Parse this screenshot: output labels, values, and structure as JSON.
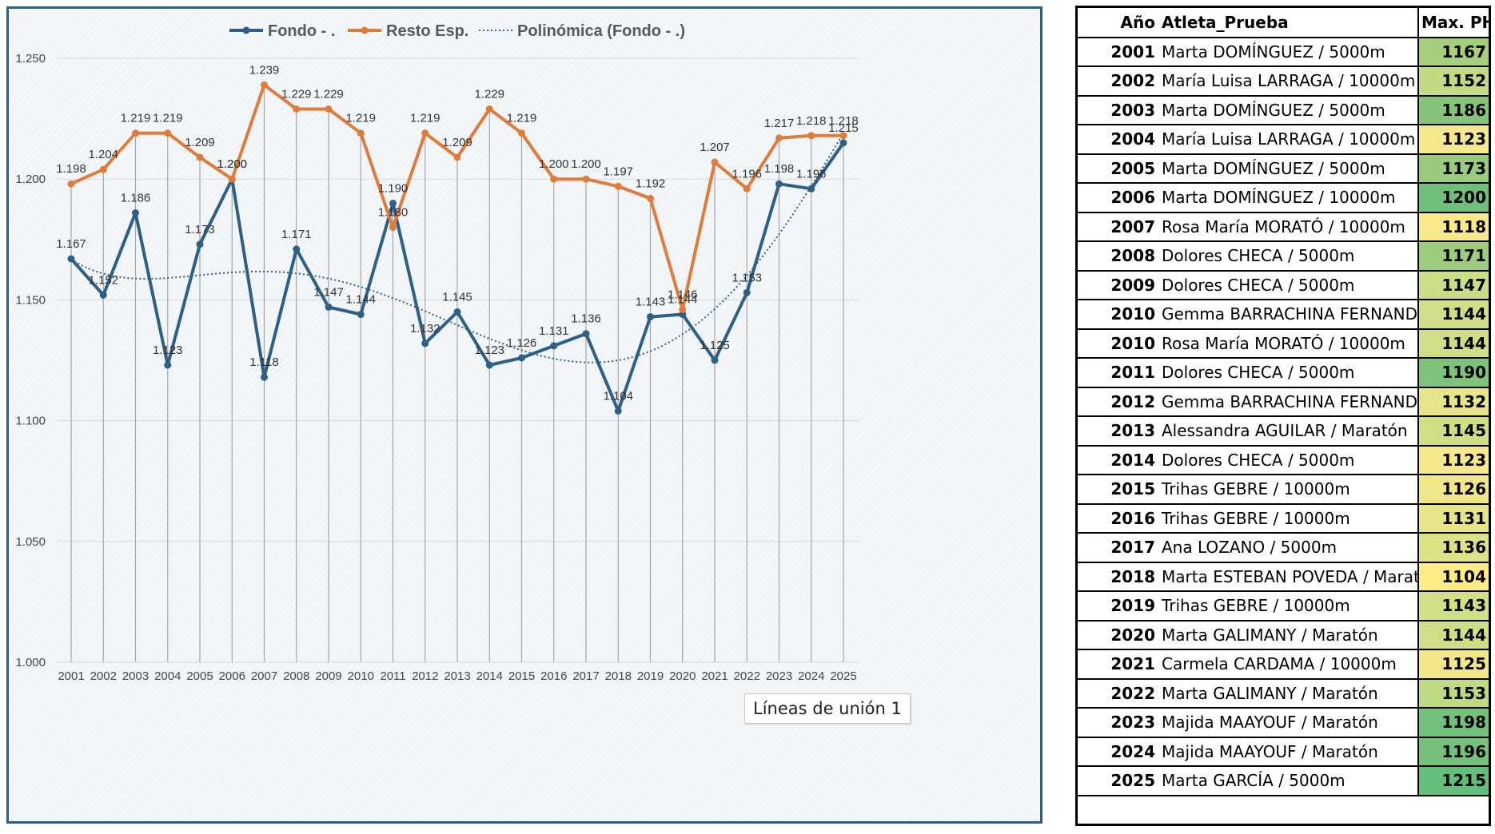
{
  "chart_data": {
    "type": "line",
    "x": [
      "2001",
      "2002",
      "2003",
      "2004",
      "2005",
      "2006",
      "2007",
      "2008",
      "2009",
      "2010",
      "2011",
      "2012",
      "2013",
      "2014",
      "2015",
      "2016",
      "2017",
      "2018",
      "2019",
      "2020",
      "2021",
      "2022",
      "2023",
      "2024",
      "2025"
    ],
    "series": [
      {
        "name": "Fondo - .",
        "color": "#2e5f86",
        "values": [
          1.167,
          1.152,
          1.186,
          1.123,
          1.173,
          1.2,
          1.118,
          1.171,
          1.147,
          1.144,
          1.19,
          1.132,
          1.145,
          1.123,
          1.126,
          1.131,
          1.136,
          1.104,
          1.143,
          1.144,
          1.125,
          1.153,
          1.198,
          1.196,
          1.215
        ],
        "labels": [
          "1.167",
          "1.152",
          "1.186",
          "1.123",
          "1.173",
          "1.200",
          "1.118",
          "1.171",
          "1.147",
          "1.144",
          "1.190",
          "1.132",
          "1.145",
          "1.123",
          "1.126",
          "1.131",
          "1.136",
          "1.104",
          "1.143",
          "1.144",
          "1.125",
          "1.153",
          "1.198",
          "1.196",
          "1.215"
        ]
      },
      {
        "name": "Resto Esp.",
        "color": "#e07b39",
        "values": [
          1.198,
          1.204,
          1.219,
          1.219,
          1.209,
          1.2,
          1.239,
          1.229,
          1.229,
          1.219,
          1.18,
          1.219,
          1.209,
          1.229,
          1.219,
          1.2,
          1.2,
          1.197,
          1.192,
          1.146,
          1.207,
          1.196,
          1.217,
          1.218,
          1.218
        ],
        "labels": [
          "1.198",
          "1.204",
          "1.219",
          "1.219",
          "1.209",
          "1.200",
          "1.239",
          "1.229",
          "1.229",
          "1.219",
          "1.180",
          "1.219",
          "1.209",
          "1.229",
          "1.219",
          "1.200",
          "1.200",
          "1.197",
          "1.192",
          "1.146",
          "1.207",
          "1.196",
          "1.217",
          "1.218",
          "1.218"
        ]
      }
    ],
    "trendline": {
      "name": "Polinómica (Fondo - .)",
      "of": "Fondo - .",
      "order": 5,
      "color": "#2e5f86"
    },
    "y_ticks": [
      "1.000",
      "1.050",
      "1.100",
      "1.150",
      "1.200",
      "1.250"
    ],
    "ylim": [
      1.0,
      1.26
    ],
    "legend_position": "top",
    "annotation": "Líneas de unión 1",
    "grid": true
  },
  "table": {
    "headers": {
      "year": "Año",
      "name": "Atleta_Prueba",
      "value": "Max. PH"
    },
    "rows": [
      {
        "year": "2001",
        "name": "Marta DOMÍNGUEZ / 5000m",
        "value": "1167",
        "color": "#a6cf7e"
      },
      {
        "year": "2002",
        "name": "María Luisa LARRAGA / 10000m",
        "value": "1152",
        "color": "#c2da84"
      },
      {
        "year": "2003",
        "name": "Marta DOMÍNGUEZ / 5000m",
        "value": "1186",
        "color": "#86c47c"
      },
      {
        "year": "2004",
        "name": "María Luisa LARRAGA / 10000m",
        "value": "1123",
        "color": "#f6e98b"
      },
      {
        "year": "2005",
        "name": "Marta DOMÍNGUEZ / 5000m",
        "value": "1173",
        "color": "#9bcb7d"
      },
      {
        "year": "2006",
        "name": "Marta DOMÍNGUEZ / 10000m",
        "value": "1200",
        "color": "#6fbf7b"
      },
      {
        "year": "2007",
        "name": "Rosa María MORATÓ / 10000m",
        "value": "1118",
        "color": "#f9e98a"
      },
      {
        "year": "2008",
        "name": "Dolores CHECA / 5000m",
        "value": "1171",
        "color": "#9ecc7d"
      },
      {
        "year": "2009",
        "name": "Dolores CHECA / 5000m",
        "value": "1147",
        "color": "#cbdd86"
      },
      {
        "year": "2010",
        "name": "Gemma BARRACHINA FERNANDEZ",
        "value": "1144",
        "color": "#d0df87"
      },
      {
        "year": "2010",
        "name": "Rosa María MORATÓ / 10000m",
        "value": "1144",
        "color": "#d0df87"
      },
      {
        "year": "2011",
        "name": "Dolores CHECA / 5000m",
        "value": "1190",
        "color": "#7fc27c"
      },
      {
        "year": "2012",
        "name": "Gemma BARRACHINA FERNANDEZ",
        "value": "1132",
        "color": "#e6e589"
      },
      {
        "year": "2013",
        "name": "Alessandra AGUILAR / Maratón",
        "value": "1145",
        "color": "#cedf86"
      },
      {
        "year": "2014",
        "name": "Dolores CHECA / 5000m",
        "value": "1123",
        "color": "#f6e98b"
      },
      {
        "year": "2015",
        "name": "Trihas GEBRE / 10000m",
        "value": "1126",
        "color": "#f0e78a"
      },
      {
        "year": "2016",
        "name": "Trihas GEBRE / 10000m",
        "value": "1131",
        "color": "#e7e589"
      },
      {
        "year": "2017",
        "name": "Ana LOZANO / 5000m",
        "value": "1136",
        "color": "#dde287"
      },
      {
        "year": "2018",
        "name": "Marta ESTEBAN POVEDA / Maratón",
        "value": "1104",
        "color": "#ffeb84"
      },
      {
        "year": "2019",
        "name": "Trihas GEBRE / 10000m",
        "value": "1143",
        "color": "#d2df87"
      },
      {
        "year": "2020",
        "name": "Marta GALIMANY / Maratón",
        "value": "1144",
        "color": "#d0df87"
      },
      {
        "year": "2021",
        "name": "Carmela CARDAMA / 10000m",
        "value": "1125",
        "color": "#f2e88a"
      },
      {
        "year": "2022",
        "name": "Marta GALIMANY / Maratón",
        "value": "1153",
        "color": "#c0da84"
      },
      {
        "year": "2023",
        "name": "Majida MAAYOUF / Maratón",
        "value": "1198",
        "color": "#72c07b"
      },
      {
        "year": "2024",
        "name": "Majida MAAYOUF / Maratón",
        "value": "1196",
        "color": "#75c17b"
      },
      {
        "year": "2025",
        "name": "Marta GARCÍA / 5000m",
        "value": "1215",
        "color": "#63be7b"
      }
    ]
  }
}
